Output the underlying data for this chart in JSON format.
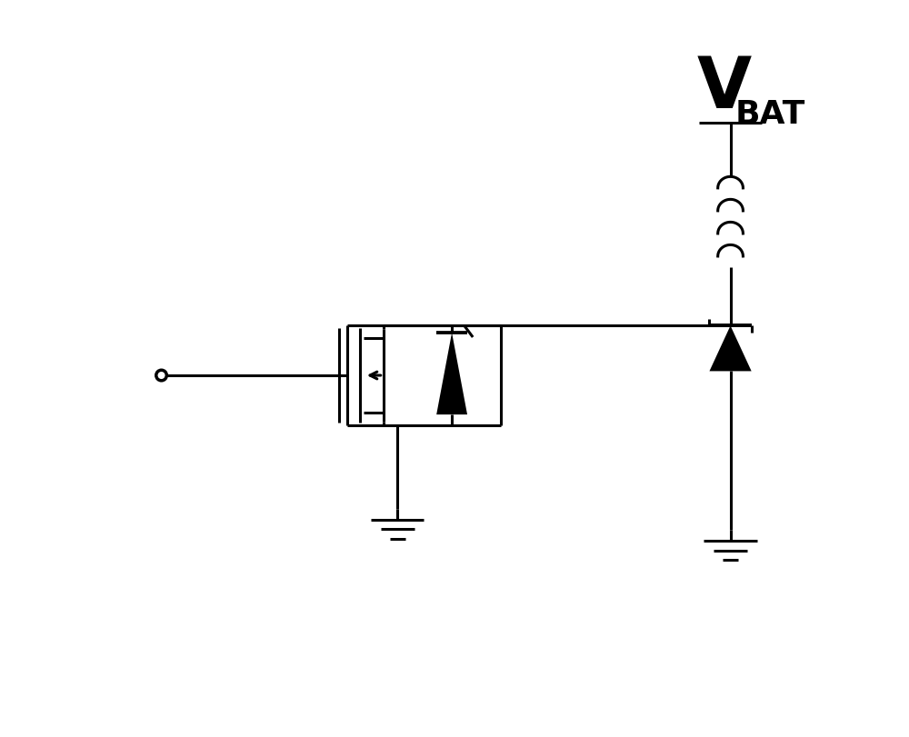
{
  "line_color": "#000000",
  "line_width": 2.2,
  "bg_color": "#ffffff",
  "figsize": [
    10.0,
    8.11
  ]
}
